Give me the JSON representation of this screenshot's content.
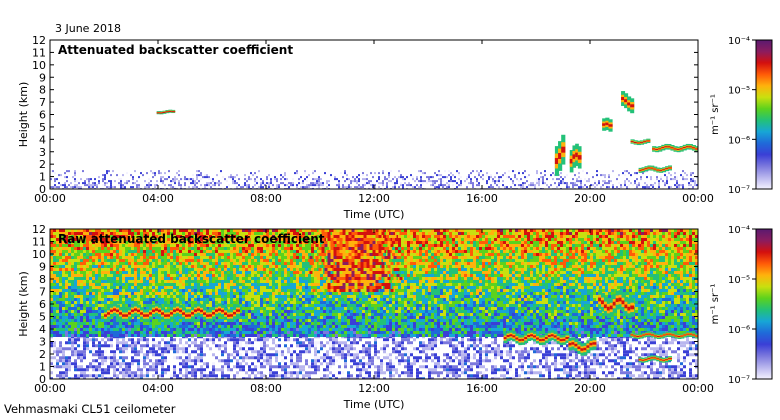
{
  "header": {
    "date": "3 June 2018"
  },
  "footer": {
    "instrument": "Vehmasmaki CL51 ceilometer"
  },
  "colors": {
    "colormap": [
      "#f4f2ff",
      "#b9b6ee",
      "#7b78dd",
      "#3a3fd6",
      "#1f6ad9",
      "#17a6d6",
      "#23c178",
      "#5cd21d",
      "#c9e00f",
      "#ffb20c",
      "#ff5b08",
      "#d4100e",
      "#8b1c5f",
      "#5a1a70"
    ]
  },
  "chart_data": [
    {
      "type": "heatmap",
      "title": "Attenuated backscatter coefficient",
      "xlabel": "Time (UTC)",
      "ylabel": "Height (km)",
      "x_ticks": [
        "00:00",
        "04:00",
        "08:00",
        "12:00",
        "16:00",
        "20:00",
        "00:00"
      ],
      "xlim_hours": [
        0,
        24
      ],
      "ylim": [
        0,
        12
      ],
      "y_ticks": [
        0,
        1,
        2,
        3,
        4,
        5,
        6,
        7,
        8,
        9,
        10,
        11,
        12
      ],
      "colorbar": {
        "label": "m⁻¹ sr⁻¹",
        "ticks": [
          "10⁻⁷",
          "10⁻⁶",
          "10⁻⁵",
          "10⁻⁴"
        ],
        "scale": "log"
      },
      "features": [
        {
          "kind": "boundary-layer-noise",
          "t_start": 0,
          "t_end": 24,
          "top_km": 1.2
        },
        {
          "kind": "cloud",
          "t_start": 3.95,
          "t_end": 4.6,
          "h_km": 6.2,
          "thickness_km": 0.25
        },
        {
          "kind": "cloud",
          "t_start": 18.7,
          "t_end": 19.05,
          "h_km": 2.8,
          "thickness_km": 2.4
        },
        {
          "kind": "cloud",
          "t_start": 19.25,
          "t_end": 19.65,
          "h_km": 2.3,
          "thickness_km": 1.8
        },
        {
          "kind": "cloud",
          "t_start": 20.45,
          "t_end": 20.8,
          "h_km": 5.0,
          "thickness_km": 1.0
        },
        {
          "kind": "cloud",
          "t_start": 21.15,
          "t_end": 21.6,
          "h_km": 7.0,
          "thickness_km": 1.2
        },
        {
          "kind": "cloud",
          "t_start": 21.5,
          "t_end": 22.2,
          "h_km": 3.8,
          "thickness_km": 0.35
        },
        {
          "kind": "cloud",
          "t_start": 22.3,
          "t_end": 24.0,
          "h_km": 3.3,
          "thickness_km": 0.45
        },
        {
          "kind": "cloud",
          "t_start": 21.8,
          "t_end": 23.0,
          "h_km": 1.6,
          "thickness_km": 0.4
        }
      ]
    },
    {
      "type": "heatmap",
      "title": "Raw attenuated backscatter coefficient",
      "xlabel": "Time (UTC)",
      "ylabel": "Height (km)",
      "x_ticks": [
        "00:00",
        "04:00",
        "08:00",
        "12:00",
        "16:00",
        "20:00",
        "00:00"
      ],
      "xlim_hours": [
        0,
        24
      ],
      "ylim": [
        0,
        12
      ],
      "y_ticks": [
        0,
        1,
        2,
        3,
        4,
        5,
        6,
        7,
        8,
        9,
        10,
        11,
        12
      ],
      "colorbar": {
        "label": "m⁻¹ sr⁻¹",
        "ticks": [
          "10⁻⁷",
          "10⁻⁶",
          "10⁻⁵",
          "10⁻⁴"
        ],
        "scale": "log"
      },
      "features": [
        {
          "kind": "noise-field",
          "t_start": 0,
          "t_end": 24,
          "h_start_km": 3.5,
          "h_end_km": 12
        },
        {
          "kind": "high-noise-region",
          "t_start": 9.5,
          "t_end": 13.0,
          "h_start_km": 7,
          "h_end_km": 12
        },
        {
          "kind": "aerosol-layer",
          "t_start": 2.0,
          "t_end": 7.0,
          "h_km": 5.3,
          "thickness_km": 1.0
        },
        {
          "kind": "cloud",
          "t_start": 16.8,
          "t_end": 19.2,
          "h_km": 3.3,
          "thickness_km": 0.8
        },
        {
          "kind": "cloud",
          "t_start": 19.2,
          "t_end": 20.2,
          "h_km": 2.6,
          "thickness_km": 1.0
        },
        {
          "kind": "cloud",
          "t_start": 20.3,
          "t_end": 21.6,
          "h_km": 6.0,
          "thickness_km": 1.5
        },
        {
          "kind": "cloud",
          "t_start": 21.5,
          "t_end": 24.0,
          "h_km": 3.5,
          "thickness_km": 0.4
        },
        {
          "kind": "cloud",
          "t_start": 21.8,
          "t_end": 23.0,
          "h_km": 1.6,
          "thickness_km": 0.4
        }
      ]
    }
  ]
}
